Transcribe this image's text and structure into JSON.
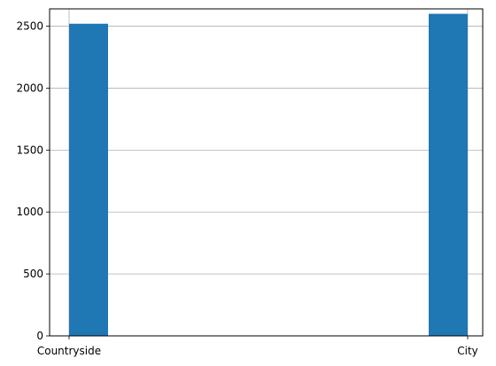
{
  "chart_data": {
    "type": "bar",
    "categories": [
      "Countryside",
      "City"
    ],
    "values": [
      2520,
      2600
    ],
    "title": "",
    "xlabel": "",
    "ylabel": "",
    "ylim": [
      0,
      2640
    ],
    "yticks": [
      0,
      500,
      1000,
      1500,
      2000,
      2500
    ],
    "grid": true,
    "bar_color": "#1f77b4",
    "grid_color": "#b0b0b0"
  }
}
